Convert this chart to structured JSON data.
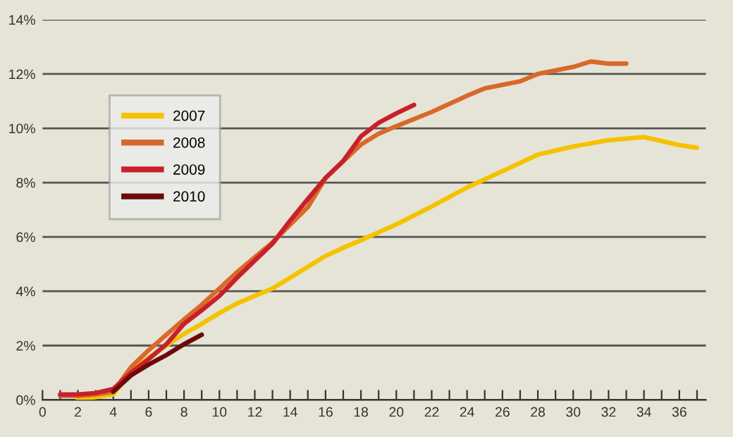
{
  "chart_data": {
    "type": "line",
    "legend": "top left",
    "grid": "y",
    "line_style": "solid",
    "marker": "none",
    "xlim": [
      0,
      37.5
    ],
    "ylim": [
      0,
      14
    ],
    "xticks": [
      0,
      {
        "value": 1,
        "label": null
      },
      2,
      {
        "value": 3,
        "label": null
      },
      4,
      {
        "value": 5,
        "label": null
      },
      6,
      {
        "value": 7,
        "label": null
      },
      8,
      {
        "value": 9,
        "label": null
      },
      10,
      {
        "value": 11,
        "label": null
      },
      12,
      {
        "value": 13,
        "label": null
      },
      14,
      {
        "value": 15,
        "label": null
      },
      16,
      {
        "value": 17,
        "label": null
      },
      18,
      {
        "value": 19,
        "label": null
      },
      20,
      {
        "value": 21,
        "label": null
      },
      22,
      {
        "value": 23,
        "label": null
      },
      24,
      {
        "value": 25,
        "label": null
      },
      26,
      {
        "value": 27,
        "label": null
      },
      28,
      {
        "value": 29,
        "label": null
      },
      30,
      {
        "value": 31,
        "label": null
      },
      32,
      {
        "value": 33,
        "label": null
      },
      34,
      {
        "value": 35,
        "label": null
      },
      36,
      {
        "value": 37,
        "label": null
      }
    ],
    "yticks": [
      {
        "value": 0,
        "label": "0%"
      },
      {
        "value": 2,
        "label": "2%"
      },
      {
        "value": 4,
        "label": "4%"
      },
      {
        "value": 6,
        "label": "6%"
      },
      {
        "value": 8,
        "label": "8%"
      },
      {
        "value": 10,
        "label": "10%"
      },
      {
        "value": 12,
        "label": "12%"
      },
      {
        "value": 14,
        "label": "14%"
      }
    ],
    "series": [
      {
        "name": "2007",
        "color": "#f5c200",
        "x": [
          2,
          3,
          4,
          5,
          6,
          7,
          8,
          9,
          10,
          11,
          12,
          13,
          14,
          15,
          16,
          17,
          18,
          19,
          20,
          22,
          24,
          26,
          28,
          30,
          32,
          34,
          36,
          37
        ],
        "values": [
          0,
          0.1,
          0.2,
          1.05,
          1.55,
          2.0,
          2.43,
          2.8,
          3.2,
          3.55,
          3.83,
          4.1,
          4.5,
          4.9,
          5.3,
          5.6,
          5.88,
          6.17,
          6.46,
          7.12,
          7.82,
          8.42,
          9.03,
          9.33,
          9.56,
          9.68,
          9.38,
          9.28
        ]
      },
      {
        "name": "2008",
        "color": "#d9692a",
        "x": [
          1,
          2,
          3,
          4,
          5,
          6,
          7,
          8,
          9,
          10,
          11,
          12,
          13,
          14,
          15,
          16,
          17,
          18,
          19,
          20,
          22,
          24,
          25,
          27,
          28,
          30,
          31,
          32,
          33
        ],
        "values": [
          0.15,
          0.15,
          0.2,
          0.3,
          1.2,
          1.83,
          2.4,
          2.96,
          3.5,
          4.1,
          4.7,
          5.25,
          5.8,
          6.45,
          7.1,
          8.17,
          8.78,
          9.4,
          9.8,
          10.08,
          10.6,
          11.2,
          11.47,
          11.73,
          12.0,
          12.26,
          12.46,
          12.38,
          12.38
        ]
      },
      {
        "name": "2009",
        "color": "#c8202a",
        "x": [
          1,
          2,
          3,
          4,
          5,
          6,
          7,
          8,
          9,
          10,
          11,
          12,
          13,
          14,
          15,
          16,
          17,
          18,
          19,
          20,
          21
        ],
        "values": [
          0.2,
          0.2,
          0.25,
          0.4,
          1.0,
          1.5,
          2.05,
          2.8,
          3.3,
          3.83,
          4.5,
          5.13,
          5.75,
          6.6,
          7.4,
          8.17,
          8.8,
          9.7,
          10.2,
          10.55,
          10.86
        ]
      },
      {
        "name": "2010",
        "color": "#6b0a0a",
        "x": [
          4,
          5,
          6,
          7,
          8,
          9
        ],
        "values": [
          0.3,
          0.9,
          1.3,
          1.65,
          2.05,
          2.4
        ]
      }
    ]
  }
}
